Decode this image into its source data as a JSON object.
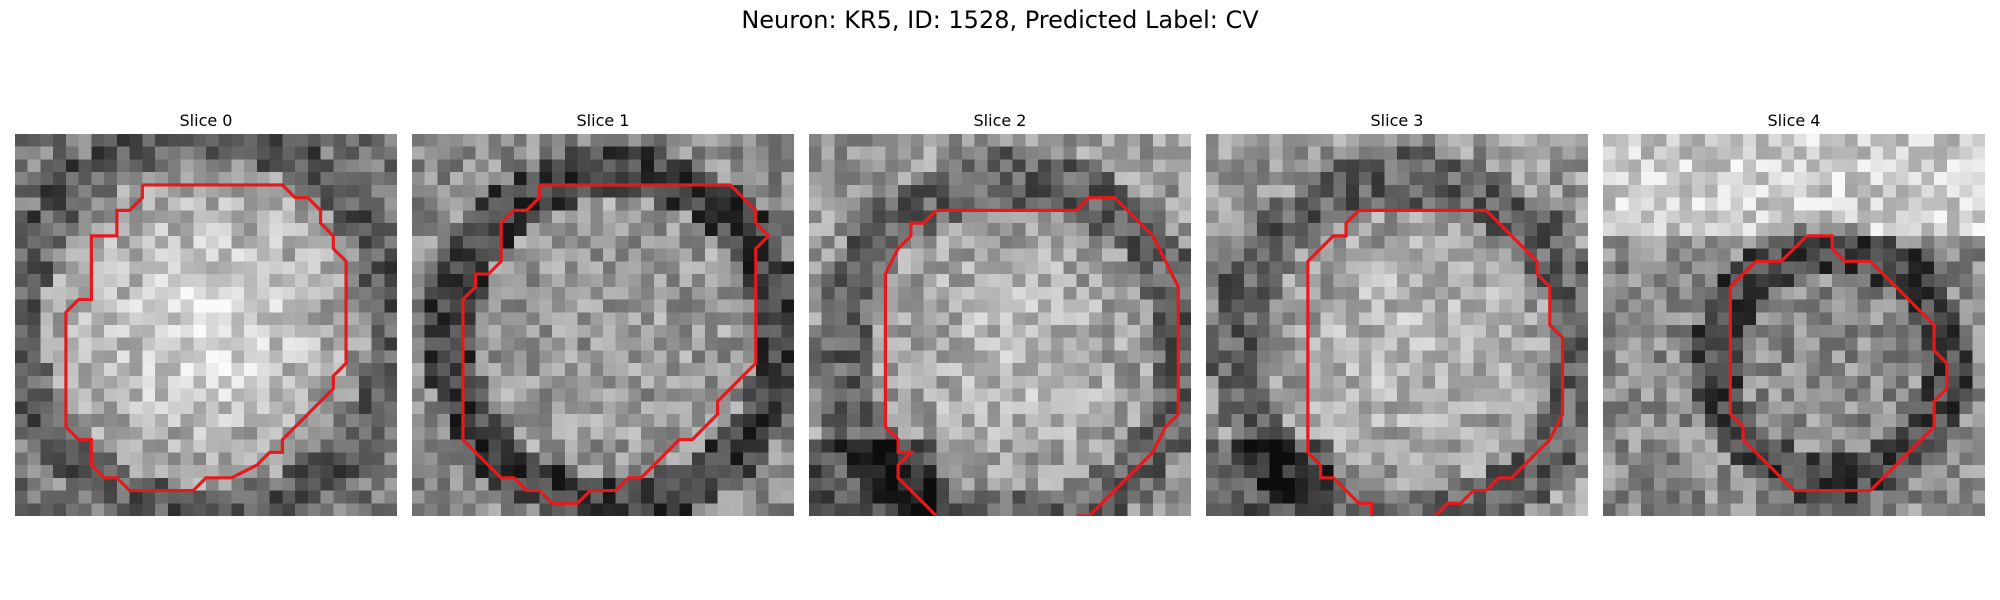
{
  "figure": {
    "title": "Neuron: KR5, ID: 1528, Predicted Label: CV"
  },
  "colors": {
    "contour": "#e41a1c",
    "background": "#ffffff"
  },
  "panels": [
    {
      "title": "Slice 0",
      "seed": 11,
      "tone": "bright-center"
    },
    {
      "title": "Slice 1",
      "seed": 23,
      "tone": "dark-ring"
    },
    {
      "title": "Slice 2",
      "seed": 37,
      "tone": "soft-center"
    },
    {
      "title": "Slice 3",
      "seed": 51,
      "tone": "soft-center"
    },
    {
      "title": "Slice 4",
      "seed": 67,
      "tone": "dark-ring-bright-top"
    }
  ]
}
